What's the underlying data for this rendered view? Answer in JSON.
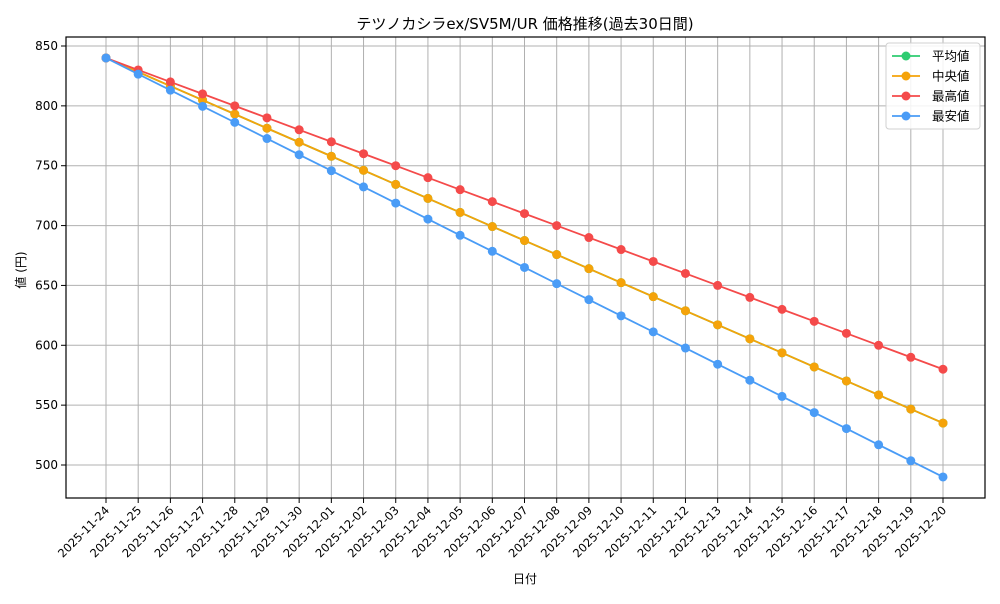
{
  "chart_data": {
    "type": "line",
    "title": "テツノカシラex/SV5M/UR 価格推移(過去30日間)",
    "xlabel": "日付",
    "ylabel": "値 (円)",
    "ylim": [
      471,
      858
    ],
    "yticks": [
      500,
      550,
      600,
      650,
      700,
      750,
      800,
      850
    ],
    "grid": true,
    "legend_position": "upper right",
    "x": [
      "2025-11-24",
      "2025-11-25",
      "2025-11-26",
      "2025-11-27",
      "2025-11-28",
      "2025-11-29",
      "2025-11-30",
      "2025-12-01",
      "2025-12-02",
      "2025-12-03",
      "2025-12-04",
      "2025-12-05",
      "2025-12-06",
      "2025-12-07",
      "2025-12-08",
      "2025-12-09",
      "2025-12-10",
      "2025-12-11",
      "2025-12-12",
      "2025-12-13",
      "2025-12-14",
      "2025-12-15",
      "2025-12-16",
      "2025-12-17",
      "2025-12-18",
      "2025-12-19",
      "2025-12-20"
    ],
    "series": [
      {
        "name": "平均値",
        "color": "#2ecc71",
        "values": [
          840,
          828.3,
          816.5,
          804.8,
          793.1,
          781.3,
          769.6,
          757.9,
          746.2,
          734.4,
          722.7,
          711,
          699.2,
          687.5,
          675.8,
          664,
          652.3,
          640.6,
          628.8,
          617.1,
          605.4,
          593.7,
          581.9,
          570.2,
          558.5,
          546.7,
          535
        ]
      },
      {
        "name": "中央値",
        "color": "#f5a30a",
        "values": [
          840,
          828.3,
          816.5,
          804.8,
          793.1,
          781.3,
          769.6,
          757.9,
          746.2,
          734.4,
          722.7,
          711,
          699.2,
          687.5,
          675.8,
          664,
          652.3,
          640.6,
          628.8,
          617.1,
          605.4,
          593.7,
          581.9,
          570.2,
          558.5,
          546.7,
          535
        ]
      },
      {
        "name": "最高値",
        "color": "#f44a4a",
        "values": [
          840,
          830,
          820,
          810,
          800,
          790,
          780,
          770,
          760,
          750,
          740,
          730,
          720,
          710,
          700,
          690,
          680,
          670,
          660,
          650,
          640,
          630,
          620,
          610,
          600,
          590,
          580
        ]
      },
      {
        "name": "最安値",
        "color": "#4a9cf6",
        "values": [
          840,
          826.5,
          813.1,
          799.6,
          786.2,
          772.7,
          759.2,
          745.8,
          732.3,
          718.8,
          705.4,
          691.9,
          678.5,
          665,
          651.5,
          638.1,
          624.6,
          611.2,
          597.7,
          584.2,
          570.8,
          557.3,
          543.8,
          530.4,
          516.9,
          503.5,
          490
        ]
      }
    ]
  }
}
